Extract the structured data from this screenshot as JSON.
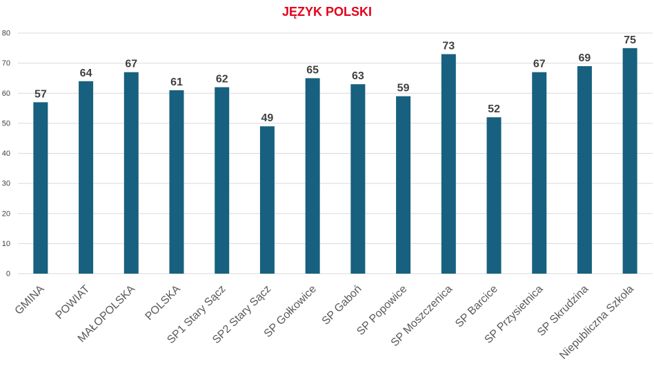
{
  "colors": {
    "title": "#e2001a",
    "bar": "#17607f",
    "grid": "#d9d9d9",
    "text": "#404040",
    "label": "#595959"
  },
  "chart_data": {
    "type": "bar",
    "title": "JĘZYK POLSKI",
    "xlabel": "",
    "ylabel": "",
    "ylim": [
      0,
      80
    ],
    "yticks": [
      0,
      10,
      20,
      30,
      40,
      50,
      60,
      70,
      80
    ],
    "grid": true,
    "legend": "none",
    "categories": [
      "GMINA",
      "POWIAT",
      "MAŁOPOLSKA",
      "POLSKA",
      "SP1 Stary Sącz",
      "SP2 Stary Sącz",
      "SP Gołkowice",
      "SP Gaboń",
      "SP Popowice",
      "SP Moszczenica",
      "SP Barcice",
      "SP Przysietnica",
      "SP Skrudzina",
      "Niepubliczna Szkoła"
    ],
    "values": [
      57,
      64,
      67,
      61,
      62,
      49,
      65,
      63,
      59,
      73,
      52,
      67,
      69,
      75
    ]
  }
}
